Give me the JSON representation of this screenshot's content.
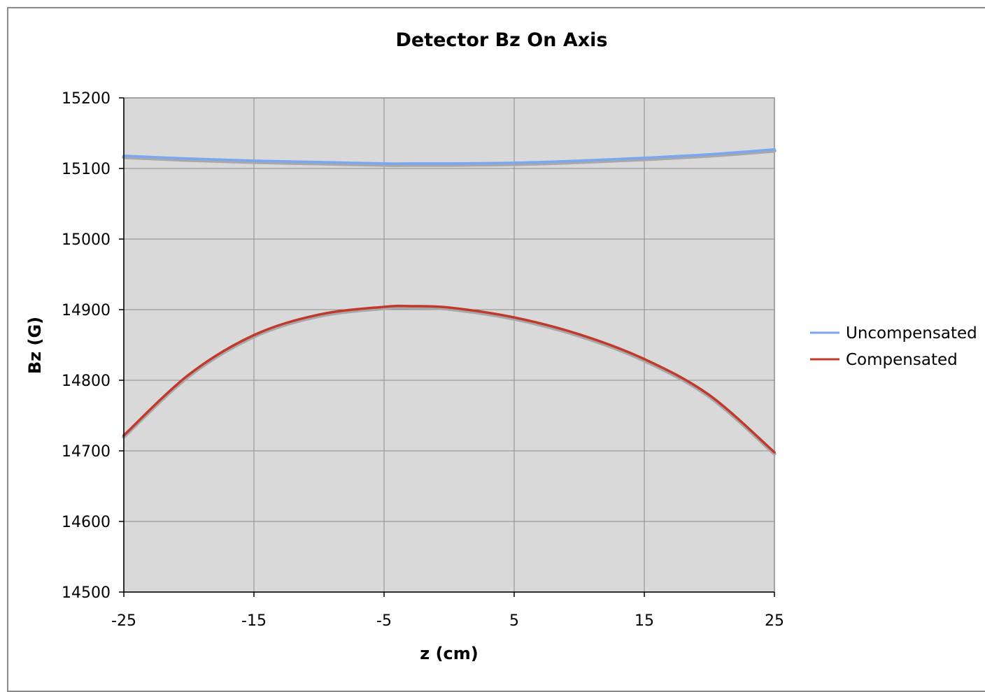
{
  "chart_data": {
    "type": "line",
    "title": "Detector Bz On Axis",
    "xlabel": "z (cm)",
    "ylabel": "Bz (G)",
    "xlim": [
      -25,
      25
    ],
    "ylim": [
      14500,
      15200
    ],
    "x_ticks": [
      "-25",
      "-15",
      "-5",
      "5",
      "15",
      "25"
    ],
    "y_ticks": [
      "15200",
      "15100",
      "15000",
      "14900",
      "14800",
      "14700",
      "14600",
      "14500"
    ],
    "x_tick_values": [
      -25,
      -15,
      -5,
      5,
      15,
      25
    ],
    "y_tick_values": [
      15200,
      15100,
      15000,
      14900,
      14800,
      14700,
      14600,
      14500
    ],
    "grid": true,
    "plot_background": "#d9d9d9",
    "legend_position": "right",
    "x": [
      -25,
      -20,
      -15,
      -10,
      -5,
      -3,
      0,
      5,
      10,
      15,
      20,
      25
    ],
    "series": [
      {
        "name": "Uncompensated",
        "color": "#7aa7f0",
        "values": [
          15118,
          15114,
          15111,
          15109,
          15107,
          15107,
          15107,
          15108,
          15111,
          15115,
          15120,
          15127
        ]
      },
      {
        "name": "Compensated",
        "color": "#c0392b",
        "values": [
          14722,
          14808,
          14864,
          14893,
          14904,
          14905,
          14903,
          14889,
          14865,
          14830,
          14779,
          14698
        ]
      }
    ]
  }
}
